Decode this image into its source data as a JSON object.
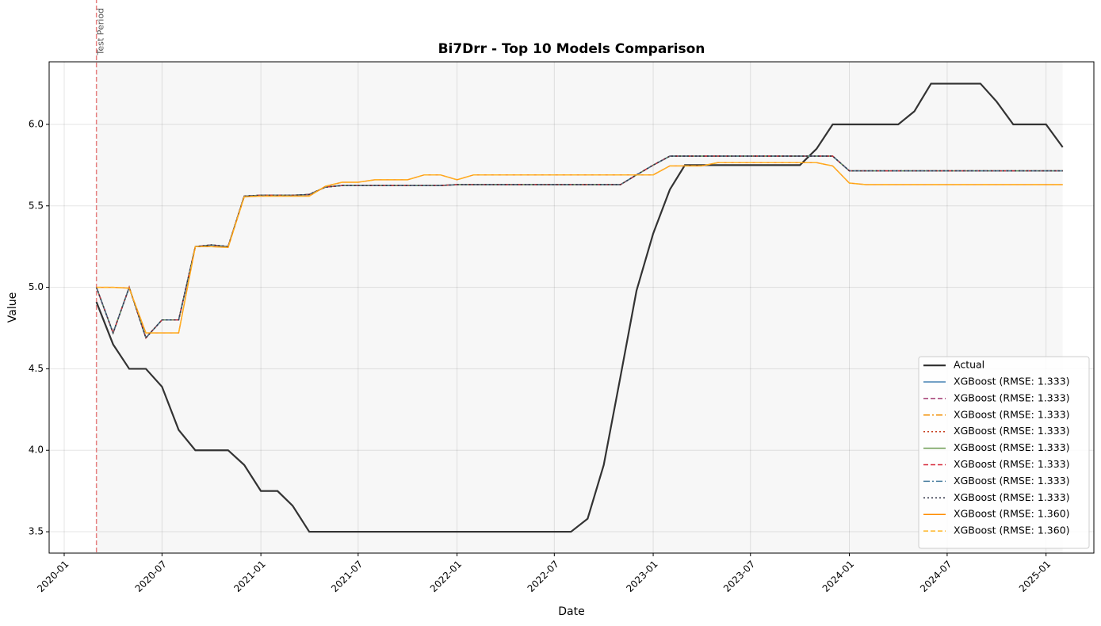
{
  "chart_data": {
    "type": "line",
    "title": "Bi7Drr - Top 10 Models Comparison",
    "xlabel": "Date",
    "ylabel": "Value",
    "test_period": {
      "label": "Test Period",
      "x": "2020-03"
    },
    "x": [
      "2020-03",
      "2020-04",
      "2020-05",
      "2020-06",
      "2020-07",
      "2020-08",
      "2020-09",
      "2020-10",
      "2020-11",
      "2020-12",
      "2021-01",
      "2021-02",
      "2021-03",
      "2021-04",
      "2021-05",
      "2021-06",
      "2021-07",
      "2021-08",
      "2021-09",
      "2021-10",
      "2021-11",
      "2021-12",
      "2022-01",
      "2022-02",
      "2022-03",
      "2022-04",
      "2022-05",
      "2022-06",
      "2022-07",
      "2022-08",
      "2022-09",
      "2022-10",
      "2022-11",
      "2022-12",
      "2023-01",
      "2023-02",
      "2023-03",
      "2023-04",
      "2023-05",
      "2023-06",
      "2023-07",
      "2023-08",
      "2023-09",
      "2023-10",
      "2023-11",
      "2023-12",
      "2024-01",
      "2024-02",
      "2024-03",
      "2024-04",
      "2024-05",
      "2024-06",
      "2024-07",
      "2024-08",
      "2024-09",
      "2024-10",
      "2024-11",
      "2024-12",
      "2025-01",
      "2025-02"
    ],
    "xlim": [
      "2019-12-04",
      "2025-03-31"
    ],
    "xticks": [
      "2020-01",
      "2020-07",
      "2021-01",
      "2021-07",
      "2022-01",
      "2022-07",
      "2023-01",
      "2023-07",
      "2024-01",
      "2024-07",
      "2025-01"
    ],
    "ylim": [
      3.369,
      6.384
    ],
    "yticks": [
      {
        "value": 3.5,
        "label": "3.5"
      },
      {
        "value": 4,
        "label": "4.0"
      },
      {
        "value": 4.5,
        "label": "4.5"
      },
      {
        "value": 5,
        "label": "5.0"
      },
      {
        "value": 5.5,
        "label": "5.5"
      },
      {
        "value": 6,
        "label": "6.0"
      }
    ],
    "grid": true,
    "legend": "lower right",
    "series": [
      {
        "name": "Actual",
        "color": "#333333",
        "linestyle": "solid",
        "width": 2.2,
        "values": [
          4.91,
          4.65,
          4.5,
          4.5,
          4.39,
          4.125,
          4.0,
          4.0,
          4.0,
          3.91,
          3.75,
          3.75,
          3.66,
          3.5,
          3.5,
          3.5,
          3.5,
          3.5,
          3.5,
          3.5,
          3.5,
          3.5,
          3.5,
          3.5,
          3.5,
          3.5,
          3.5,
          3.5,
          3.5,
          3.5,
          3.58,
          3.91,
          4.45,
          4.98,
          5.33,
          5.6,
          5.75,
          5.75,
          5.75,
          5.75,
          5.75,
          5.75,
          5.75,
          5.75,
          5.85,
          6.0,
          6.0,
          6.0,
          6.0,
          6.0,
          6.08,
          6.25,
          6.25,
          6.25,
          6.25,
          6.14,
          6.0,
          6.0,
          6.0,
          5.86
        ]
      },
      {
        "name": "XGBoost (RMSE: 1.333)",
        "color": "#4682b4",
        "linestyle": "solid",
        "width": 1.5,
        "values": [
          5.0,
          4.72,
          5.0,
          4.69,
          4.8,
          4.8,
          5.25,
          5.26,
          5.25,
          5.56,
          5.565,
          5.565,
          5.565,
          5.57,
          5.615,
          5.625,
          5.625,
          5.625,
          5.625,
          5.625,
          5.625,
          5.625,
          5.63,
          5.63,
          5.63,
          5.63,
          5.63,
          5.63,
          5.63,
          5.63,
          5.63,
          5.63,
          5.63,
          5.69,
          5.75,
          5.805,
          5.805,
          5.805,
          5.805,
          5.805,
          5.805,
          5.805,
          5.805,
          5.805,
          5.805,
          5.805,
          5.715,
          5.715,
          5.715,
          5.715,
          5.715,
          5.715,
          5.715,
          5.715,
          5.715,
          5.715,
          5.715,
          5.715,
          5.715,
          5.715
        ]
      },
      {
        "name": "XGBoost (RMSE: 1.333)",
        "color": "#a23b72",
        "linestyle": "dashed",
        "width": 1.5,
        "values": [
          5.0,
          4.72,
          5.0,
          4.69,
          4.8,
          4.8,
          5.25,
          5.26,
          5.25,
          5.56,
          5.565,
          5.565,
          5.565,
          5.57,
          5.615,
          5.625,
          5.625,
          5.625,
          5.625,
          5.625,
          5.625,
          5.625,
          5.63,
          5.63,
          5.63,
          5.63,
          5.63,
          5.63,
          5.63,
          5.63,
          5.63,
          5.63,
          5.63,
          5.69,
          5.75,
          5.805,
          5.805,
          5.805,
          5.805,
          5.805,
          5.805,
          5.805,
          5.805,
          5.805,
          5.805,
          5.805,
          5.715,
          5.715,
          5.715,
          5.715,
          5.715,
          5.715,
          5.715,
          5.715,
          5.715,
          5.715,
          5.715,
          5.715,
          5.715,
          5.715
        ]
      },
      {
        "name": "XGBoost (RMSE: 1.333)",
        "color": "#f18f01",
        "linestyle": "dashdot",
        "width": 1.5,
        "values": [
          5.0,
          4.72,
          5.0,
          4.69,
          4.8,
          4.8,
          5.25,
          5.26,
          5.25,
          5.56,
          5.565,
          5.565,
          5.565,
          5.57,
          5.615,
          5.625,
          5.625,
          5.625,
          5.625,
          5.625,
          5.625,
          5.625,
          5.63,
          5.63,
          5.63,
          5.63,
          5.63,
          5.63,
          5.63,
          5.63,
          5.63,
          5.63,
          5.63,
          5.69,
          5.75,
          5.805,
          5.805,
          5.805,
          5.805,
          5.805,
          5.805,
          5.805,
          5.805,
          5.805,
          5.805,
          5.805,
          5.715,
          5.715,
          5.715,
          5.715,
          5.715,
          5.715,
          5.715,
          5.715,
          5.715,
          5.715,
          5.715,
          5.715,
          5.715,
          5.715
        ]
      },
      {
        "name": "XGBoost (RMSE: 1.333)",
        "color": "#c73e1d",
        "linestyle": "dotted",
        "width": 1.5,
        "values": [
          5.0,
          4.72,
          5.0,
          4.69,
          4.8,
          4.8,
          5.25,
          5.26,
          5.25,
          5.56,
          5.565,
          5.565,
          5.565,
          5.57,
          5.615,
          5.625,
          5.625,
          5.625,
          5.625,
          5.625,
          5.625,
          5.625,
          5.63,
          5.63,
          5.63,
          5.63,
          5.63,
          5.63,
          5.63,
          5.63,
          5.63,
          5.63,
          5.63,
          5.69,
          5.75,
          5.805,
          5.805,
          5.805,
          5.805,
          5.805,
          5.805,
          5.805,
          5.805,
          5.805,
          5.805,
          5.805,
          5.715,
          5.715,
          5.715,
          5.715,
          5.715,
          5.715,
          5.715,
          5.715,
          5.715,
          5.715,
          5.715,
          5.715,
          5.715,
          5.715
        ]
      },
      {
        "name": "XGBoost (RMSE: 1.333)",
        "color": "#6a994e",
        "linestyle": "solid",
        "width": 1.5,
        "values": [
          5.0,
          4.72,
          5.0,
          4.69,
          4.8,
          4.8,
          5.25,
          5.26,
          5.25,
          5.56,
          5.565,
          5.565,
          5.565,
          5.57,
          5.615,
          5.625,
          5.625,
          5.625,
          5.625,
          5.625,
          5.625,
          5.625,
          5.63,
          5.63,
          5.63,
          5.63,
          5.63,
          5.63,
          5.63,
          5.63,
          5.63,
          5.63,
          5.63,
          5.69,
          5.75,
          5.805,
          5.805,
          5.805,
          5.805,
          5.805,
          5.805,
          5.805,
          5.805,
          5.805,
          5.805,
          5.805,
          5.715,
          5.715,
          5.715,
          5.715,
          5.715,
          5.715,
          5.715,
          5.715,
          5.715,
          5.715,
          5.715,
          5.715,
          5.715,
          5.715
        ]
      },
      {
        "name": "XGBoost (RMSE: 1.333)",
        "color": "#d62839",
        "linestyle": "dashed",
        "width": 1.5,
        "values": [
          5.0,
          4.72,
          5.0,
          4.69,
          4.8,
          4.8,
          5.25,
          5.26,
          5.25,
          5.56,
          5.565,
          5.565,
          5.565,
          5.57,
          5.615,
          5.625,
          5.625,
          5.625,
          5.625,
          5.625,
          5.625,
          5.625,
          5.63,
          5.63,
          5.63,
          5.63,
          5.63,
          5.63,
          5.63,
          5.63,
          5.63,
          5.63,
          5.63,
          5.69,
          5.75,
          5.805,
          5.805,
          5.805,
          5.805,
          5.805,
          5.805,
          5.805,
          5.805,
          5.805,
          5.805,
          5.805,
          5.715,
          5.715,
          5.715,
          5.715,
          5.715,
          5.715,
          5.715,
          5.715,
          5.715,
          5.715,
          5.715,
          5.715,
          5.715,
          5.715
        ]
      },
      {
        "name": "XGBoost (RMSE: 1.333)",
        "color": "#457b9d",
        "linestyle": "dashdot",
        "width": 1.5,
        "values": [
          5.0,
          4.72,
          5.0,
          4.69,
          4.8,
          4.8,
          5.25,
          5.26,
          5.25,
          5.56,
          5.565,
          5.565,
          5.565,
          5.57,
          5.615,
          5.625,
          5.625,
          5.625,
          5.625,
          5.625,
          5.625,
          5.625,
          5.63,
          5.63,
          5.63,
          5.63,
          5.63,
          5.63,
          5.63,
          5.63,
          5.63,
          5.63,
          5.63,
          5.69,
          5.75,
          5.805,
          5.805,
          5.805,
          5.805,
          5.805,
          5.805,
          5.805,
          5.805,
          5.805,
          5.805,
          5.805,
          5.715,
          5.715,
          5.715,
          5.715,
          5.715,
          5.715,
          5.715,
          5.715,
          5.715,
          5.715,
          5.715,
          5.715,
          5.715,
          5.715
        ]
      },
      {
        "name": "XGBoost (RMSE: 1.333)",
        "color": "#2b2d42",
        "linestyle": "dotted",
        "width": 1.5,
        "values": [
          5.0,
          4.72,
          5.0,
          4.69,
          4.8,
          4.8,
          5.25,
          5.26,
          5.25,
          5.56,
          5.565,
          5.565,
          5.565,
          5.57,
          5.615,
          5.625,
          5.625,
          5.625,
          5.625,
          5.625,
          5.625,
          5.625,
          5.63,
          5.63,
          5.63,
          5.63,
          5.63,
          5.63,
          5.63,
          5.63,
          5.63,
          5.63,
          5.63,
          5.69,
          5.75,
          5.805,
          5.805,
          5.805,
          5.805,
          5.805,
          5.805,
          5.805,
          5.805,
          5.805,
          5.805,
          5.805,
          5.715,
          5.715,
          5.715,
          5.715,
          5.715,
          5.715,
          5.715,
          5.715,
          5.715,
          5.715,
          5.715,
          5.715,
          5.715,
          5.715
        ]
      },
      {
        "name": "XGBoost (RMSE: 1.360)",
        "color": "#ff8c00",
        "linestyle": "solid",
        "width": 1.5,
        "values": [
          5.0,
          5.0,
          4.995,
          4.72,
          4.72,
          4.72,
          5.25,
          5.25,
          5.245,
          5.555,
          5.56,
          5.56,
          5.56,
          5.56,
          5.62,
          5.645,
          5.645,
          5.66,
          5.66,
          5.66,
          5.69,
          5.69,
          5.66,
          5.69,
          5.69,
          5.69,
          5.69,
          5.69,
          5.69,
          5.69,
          5.69,
          5.69,
          5.69,
          5.69,
          5.69,
          5.745,
          5.745,
          5.745,
          5.765,
          5.765,
          5.765,
          5.765,
          5.765,
          5.765,
          5.765,
          5.745,
          5.64,
          5.63,
          5.63,
          5.63,
          5.63,
          5.63,
          5.63,
          5.63,
          5.63,
          5.63,
          5.63,
          5.63,
          5.63,
          5.63
        ]
      },
      {
        "name": "XGBoost (RMSE: 1.360)",
        "color": "#ffb627",
        "linestyle": "dashed",
        "width": 1.5,
        "values": [
          5.0,
          5.0,
          4.995,
          4.72,
          4.72,
          4.72,
          5.25,
          5.25,
          5.245,
          5.555,
          5.56,
          5.56,
          5.56,
          5.56,
          5.62,
          5.645,
          5.645,
          5.66,
          5.66,
          5.66,
          5.69,
          5.69,
          5.66,
          5.69,
          5.69,
          5.69,
          5.69,
          5.69,
          5.69,
          5.69,
          5.69,
          5.69,
          5.69,
          5.69,
          5.69,
          5.745,
          5.745,
          5.745,
          5.765,
          5.765,
          5.765,
          5.765,
          5.765,
          5.765,
          5.765,
          5.745,
          5.64,
          5.63,
          5.63,
          5.63,
          5.63,
          5.63,
          5.63,
          5.63,
          5.63,
          5.63,
          5.63,
          5.63,
          5.63,
          5.63
        ]
      }
    ]
  }
}
